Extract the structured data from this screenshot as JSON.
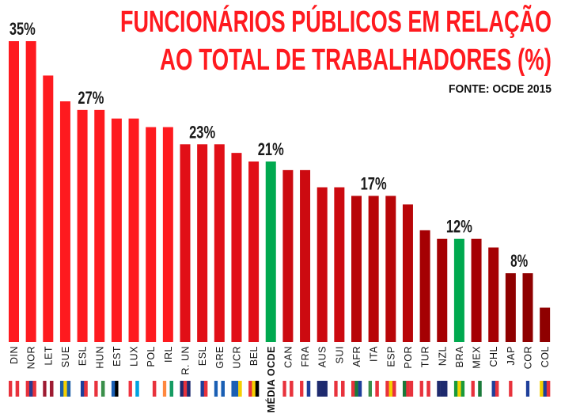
{
  "chart_data": {
    "type": "bar",
    "title_line1": "FUNCIONÁRIOS PÚBLICOS EM RELAÇÃO",
    "title_line2": "AO TOTAL DE TRABALHADORES (%)",
    "source": "FONTE: OCDE 2015",
    "xlabel": "",
    "ylabel": "",
    "ylim": [
      0,
      35
    ],
    "grid": false,
    "categories": [
      "DIN",
      "NOR",
      "LET",
      "SUE",
      "ESL",
      "HUN",
      "EST",
      "LUX",
      "POL",
      "IRL",
      "R. UN",
      "ESL",
      "GRE",
      "UCR",
      "BEL",
      "MÉDIA OCDE",
      "CAN",
      "FRA",
      "AUS",
      "SUI",
      "AFR",
      "ITA",
      "ESP",
      "POR",
      "TUR",
      "NZL",
      "BRA",
      "MEX",
      "CHL",
      "JAP",
      "COR",
      "COL"
    ],
    "values": [
      35,
      35,
      31,
      28,
      27,
      27,
      26,
      26,
      25,
      25,
      23,
      23,
      23,
      22,
      21,
      21,
      20,
      20,
      18,
      18,
      17,
      17,
      17,
      16,
      13,
      12,
      12,
      12,
      11,
      8,
      8,
      4
    ],
    "bar_colors": [
      "#fe1a1f",
      "#fe1a1f",
      "#fe1a1f",
      "#fe1a1f",
      "#fe1a1f",
      "#fe1a1f",
      "#fe1a1f",
      "#fe1a1f",
      "#fe1a1f",
      "#fe1a1f",
      "#e10f17",
      "#e10f17",
      "#e10f17",
      "#e10f17",
      "#e10f17",
      "#00a94f",
      "#cc0a10",
      "#cc0a10",
      "#cc0a10",
      "#cc0a10",
      "#b80508",
      "#b80508",
      "#b80508",
      "#b80508",
      "#a50003",
      "#a50003",
      "#00a94f",
      "#a50003",
      "#a50003",
      "#8f0000",
      "#8f0000",
      "#8f0000"
    ],
    "data_labels": [
      {
        "text": "35%",
        "from": 0,
        "to": 1,
        "value": 35
      },
      {
        "text": "27%",
        "from": 4,
        "to": 5,
        "value": 27
      },
      {
        "text": "23%",
        "from": 10,
        "to": 12,
        "value": 23
      },
      {
        "text": "21%",
        "from": 15,
        "to": 15,
        "value": 21
      },
      {
        "text": "17%",
        "from": 20,
        "to": 22,
        "value": 17
      },
      {
        "text": "12%",
        "from": 26,
        "to": 26,
        "value": 12
      },
      {
        "text": "8%",
        "from": 29,
        "to": 30,
        "value": 8
      }
    ],
    "flags": [
      [
        "#e8323c",
        "#ffffff",
        "#e8323c"
      ],
      [
        "#e8323c",
        "#2a3a8f",
        "#e8323c"
      ],
      [
        "#9e1b32",
        "#ffffff",
        "#9e1b32"
      ],
      [
        "#1e5fa8",
        "#f5d000",
        "#1e5fa8"
      ],
      [
        "#ffffff",
        "#1e3f9a",
        "#e8323c"
      ],
      [
        "#e8323c",
        "#ffffff",
        "#3a8f4a"
      ],
      [
        "#1a5fb4",
        "#000000",
        "#ffffff"
      ],
      [
        "#ef3340",
        "#ffffff",
        "#00a3e0"
      ],
      [
        "#ffffff",
        "#ffffff",
        "#e8323c"
      ],
      [
        "#ff883e",
        "#ffffff",
        "#169b62"
      ],
      [
        "#1e2a6e",
        "#e8323c",
        "#1e2a6e"
      ],
      [
        "#ffffff",
        "#1e3f9a",
        "#e8323c"
      ],
      [
        "#1a5fb4",
        "#ffffff",
        "#1a5fb4"
      ],
      [
        "#1a5fb4",
        "#1a5fb4",
        "#f5d000"
      ],
      [
        "#e8323c",
        "#f5d000",
        "#000000"
      ],
      [
        "#ffffff",
        "#ffffff",
        "#ffffff"
      ],
      [
        "#e8323c",
        "#ffffff",
        "#e8323c"
      ],
      [
        "#e8323c",
        "#ffffff",
        "#1e3f9a"
      ],
      [
        "#1e2a6e",
        "#1e2a6e",
        "#1e2a6e"
      ],
      [
        "#e8323c",
        "#ffffff",
        "#e8323c"
      ],
      [
        "#e8323c",
        "#1a7a3a",
        "#1e3f9a"
      ],
      [
        "#3a8f4a",
        "#ffffff",
        "#e8323c"
      ],
      [
        "#e8323c",
        "#f5d000",
        "#e8323c"
      ],
      [
        "#1a7a3a",
        "#e8323c",
        "#e8323c"
      ],
      [
        "#e8323c",
        "#ffffff",
        "#e8323c"
      ],
      [
        "#1e2a6e",
        "#1e2a6e",
        "#1e2a6e"
      ],
      [
        "#1a9a3a",
        "#f5d000",
        "#1a9a3a"
      ],
      [
        "#e8323c",
        "#ffffff",
        "#1a7a3a"
      ],
      [
        "#ffffff",
        "#1e3f9a",
        "#e8323c"
      ],
      [
        "#ffffff",
        "#e8323c",
        "#ffffff"
      ],
      [
        "#ffffff",
        "#1e3f9a",
        "#ffffff"
      ],
      [
        "#f5d000",
        "#1e3f9a",
        "#e8323c"
      ]
    ]
  }
}
